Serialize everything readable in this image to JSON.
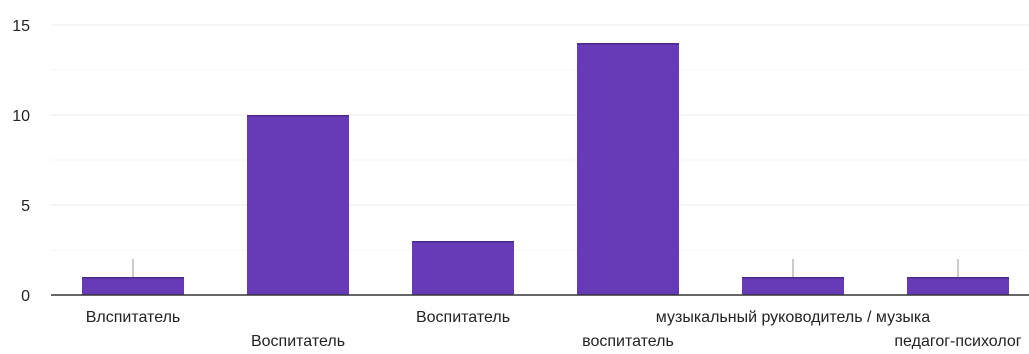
{
  "chart_data": {
    "type": "bar",
    "categories": [
      "Влспитатель",
      "Воспитатель",
      "Воспитатель",
      "воспитатель",
      "музыкальный руководитель / музыка",
      "педагог-психолог"
    ],
    "values": [
      1,
      10,
      3,
      14,
      1,
      1
    ],
    "ylim": [
      0,
      15
    ],
    "yticks": [
      0,
      5,
      10,
      15
    ],
    "grid": true,
    "legend": "none",
    "bar_color": "#673ab7",
    "grid_color": "#ebebeb",
    "minor_grid_color": "#f4f4f4",
    "axis_color": "#333333",
    "label_color": "#222222"
  }
}
